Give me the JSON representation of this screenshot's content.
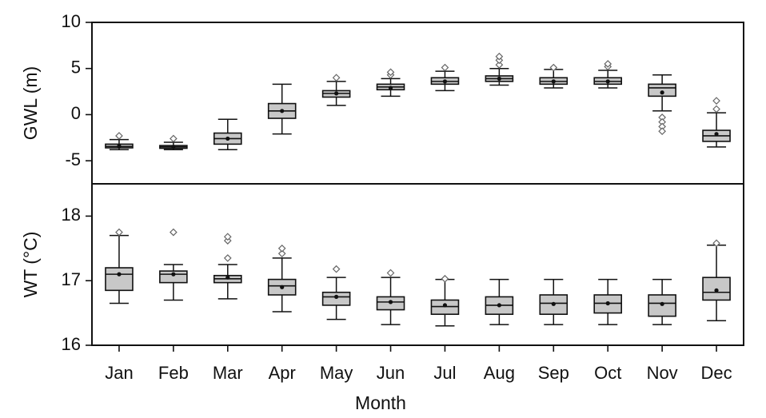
{
  "chart_data": [
    {
      "type": "boxplot",
      "panel": "top",
      "ylabel": "GWL (m)",
      "ylim": [
        -7.5,
        10
      ],
      "yticks": [
        -5,
        0,
        5,
        10
      ],
      "categories": [
        "Jan",
        "Feb",
        "Mar",
        "Apr",
        "May",
        "Jun",
        "Jul",
        "Aug",
        "Sep",
        "Oct",
        "Nov",
        "Dec"
      ],
      "boxes": [
        {
          "min": -3.8,
          "q1": -3.6,
          "median": -3.45,
          "q3": -3.2,
          "max": -2.7,
          "mean": -3.4,
          "outliers": [
            -2.3
          ]
        },
        {
          "min": -3.8,
          "q1": -3.65,
          "median": -3.5,
          "q3": -3.35,
          "max": -3.0,
          "mean": -3.5,
          "outliers": [
            -2.6
          ]
        },
        {
          "min": -3.8,
          "q1": -3.2,
          "median": -2.6,
          "q3": -2.0,
          "max": -0.5,
          "mean": -2.6,
          "outliers": []
        },
        {
          "min": -2.1,
          "q1": -0.4,
          "median": 0.4,
          "q3": 1.2,
          "max": 3.3,
          "mean": 0.4,
          "outliers": []
        },
        {
          "min": 1.0,
          "q1": 1.9,
          "median": 2.3,
          "q3": 2.6,
          "max": 3.6,
          "mean": 2.3,
          "outliers": [
            4.0
          ]
        },
        {
          "min": 2.0,
          "q1": 2.7,
          "median": 3.0,
          "q3": 3.3,
          "max": 3.9,
          "mean": 2.9,
          "outliers": [
            4.3,
            4.6
          ]
        },
        {
          "min": 2.6,
          "q1": 3.3,
          "median": 3.6,
          "q3": 4.0,
          "max": 4.7,
          "mean": 3.6,
          "outliers": [
            5.1
          ]
        },
        {
          "min": 3.2,
          "q1": 3.6,
          "median": 3.9,
          "q3": 4.2,
          "max": 5.0,
          "mean": 3.9,
          "outliers": [
            5.4,
            5.9,
            6.3
          ]
        },
        {
          "min": 2.9,
          "q1": 3.3,
          "median": 3.6,
          "q3": 4.0,
          "max": 4.9,
          "mean": 3.6,
          "outliers": [
            5.1
          ]
        },
        {
          "min": 2.9,
          "q1": 3.3,
          "median": 3.6,
          "q3": 4.0,
          "max": 4.8,
          "mean": 3.6,
          "outliers": [
            5.2,
            5.5
          ]
        },
        {
          "min": 0.4,
          "q1": 2.0,
          "median": 2.9,
          "q3": 3.3,
          "max": 4.3,
          "mean": 2.4,
          "outliers": [
            -0.3,
            -0.8,
            -1.3,
            -1.8
          ]
        },
        {
          "min": -3.5,
          "q1": -2.9,
          "median": -2.3,
          "q3": -1.7,
          "max": 0.2,
          "mean": -2.1,
          "outliers": [
            0.6,
            1.5
          ]
        }
      ]
    },
    {
      "type": "boxplot",
      "panel": "bottom",
      "ylabel": "WT (°C)",
      "xlabel": "Month",
      "ylim": [
        16,
        18.5
      ],
      "yticks": [
        16,
        17,
        18
      ],
      "categories": [
        "Jan",
        "Feb",
        "Mar",
        "Apr",
        "May",
        "Jun",
        "Jul",
        "Aug",
        "Sep",
        "Oct",
        "Nov",
        "Dec"
      ],
      "boxes": [
        {
          "min": 16.65,
          "q1": 16.85,
          "median": 17.1,
          "q3": 17.2,
          "max": 17.7,
          "mean": 17.1,
          "outliers": [
            17.75
          ]
        },
        {
          "min": 16.7,
          "q1": 16.97,
          "median": 17.1,
          "q3": 17.15,
          "max": 17.25,
          "mean": 17.1,
          "outliers": [
            17.75
          ]
        },
        {
          "min": 16.72,
          "q1": 16.97,
          "median": 17.03,
          "q3": 17.08,
          "max": 17.25,
          "mean": 17.05,
          "outliers": [
            17.35,
            17.62,
            17.68
          ]
        },
        {
          "min": 16.52,
          "q1": 16.78,
          "median": 16.92,
          "q3": 17.02,
          "max": 17.35,
          "mean": 16.9,
          "outliers": [
            17.42,
            17.5
          ]
        },
        {
          "min": 16.4,
          "q1": 16.62,
          "median": 16.75,
          "q3": 16.82,
          "max": 17.05,
          "mean": 16.75,
          "outliers": [
            17.18
          ]
        },
        {
          "min": 16.32,
          "q1": 16.55,
          "median": 16.67,
          "q3": 16.75,
          "max": 17.05,
          "mean": 16.67,
          "outliers": [
            17.12
          ]
        },
        {
          "min": 16.3,
          "q1": 16.48,
          "median": 16.6,
          "q3": 16.7,
          "max": 17.02,
          "mean": 16.62,
          "outliers": [
            17.03
          ]
        },
        {
          "min": 16.32,
          "q1": 16.48,
          "median": 16.62,
          "q3": 16.75,
          "max": 17.02,
          "mean": 16.62,
          "outliers": []
        },
        {
          "min": 16.32,
          "q1": 16.48,
          "median": 16.65,
          "q3": 16.78,
          "max": 17.02,
          "mean": 16.64,
          "outliers": []
        },
        {
          "min": 16.32,
          "q1": 16.5,
          "median": 16.65,
          "q3": 16.78,
          "max": 17.02,
          "mean": 16.65,
          "outliers": []
        },
        {
          "min": 16.32,
          "q1": 16.45,
          "median": 16.65,
          "q3": 16.78,
          "max": 17.02,
          "mean": 16.64,
          "outliers": []
        },
        {
          "min": 16.38,
          "q1": 16.7,
          "median": 16.82,
          "q3": 17.05,
          "max": 17.55,
          "mean": 16.85,
          "outliers": [
            17.58
          ]
        }
      ]
    }
  ]
}
